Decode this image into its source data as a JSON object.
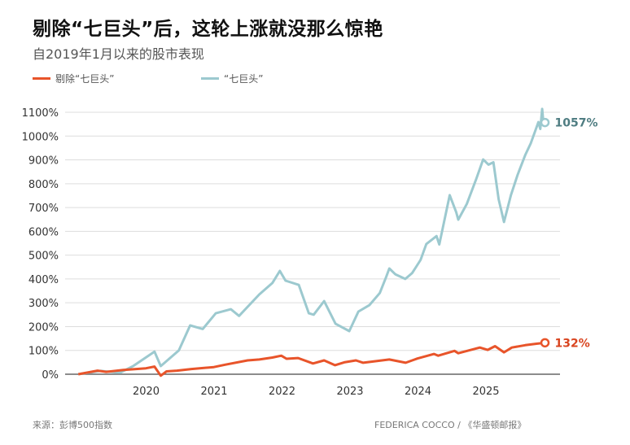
{
  "title": "剔除“七巨头”后，这轮上涨就没那么惊艳",
  "subtitle": "自2019年1月以来的股市表现",
  "source": "来源：彭博500指数",
  "credit": "FEDERICA COCCO / 《华盛顿邮报》",
  "chart_data": {
    "type": "line",
    "xlabel": "",
    "ylabel": "",
    "ylim": [
      0,
      1100
    ],
    "yticks": [
      "0%",
      "100%",
      "200%",
      "300%",
      "400%",
      "500%",
      "600%",
      "700%",
      "800%",
      "900%",
      "1000%",
      "1100%"
    ],
    "xticks": [
      "2020",
      "2021",
      "2022",
      "2023",
      "2024",
      "2025"
    ],
    "grid": true,
    "legend": "top-left",
    "series": [
      {
        "name": "剔除“七巨头”",
        "color": "#e8542a",
        "end_label": "132%",
        "points": [
          [
            "2019-01-02",
            0
          ],
          [
            "2019-04-15",
            15
          ],
          [
            "2019-06-01",
            10
          ],
          [
            "2019-09-01",
            18
          ],
          [
            "2019-12-31",
            25
          ],
          [
            "2020-02-15",
            32
          ],
          [
            "2020-03-20",
            -6
          ],
          [
            "2020-04-20",
            12
          ],
          [
            "2020-06-15",
            15
          ],
          [
            "2020-09-01",
            22
          ],
          [
            "2020-12-31",
            30
          ],
          [
            "2021-03-01",
            40
          ],
          [
            "2021-06-30",
            58
          ],
          [
            "2021-09-01",
            62
          ],
          [
            "2021-11-10",
            70
          ],
          [
            "2021-12-28",
            78
          ],
          [
            "2022-01-25",
            65
          ],
          [
            "2022-03-28",
            68
          ],
          [
            "2022-06-16",
            45
          ],
          [
            "2022-08-15",
            58
          ],
          [
            "2022-10-12",
            38
          ],
          [
            "2022-12-01",
            50
          ],
          [
            "2023-02-02",
            58
          ],
          [
            "2023-03-13",
            48
          ],
          [
            "2023-07-31",
            62
          ],
          [
            "2023-10-27",
            48
          ],
          [
            "2023-12-29",
            66
          ],
          [
            "2024-03-28",
            85
          ],
          [
            "2024-04-19",
            78
          ],
          [
            "2024-07-16",
            98
          ],
          [
            "2024-08-05",
            88
          ],
          [
            "2024-11-29",
            112
          ],
          [
            "2025-01-10",
            102
          ],
          [
            "2025-02-19",
            118
          ],
          [
            "2025-04-08",
            92
          ],
          [
            "2025-05-20",
            112
          ],
          [
            "2025-07-31",
            122
          ],
          [
            "2025-09-30",
            128
          ],
          [
            "2025-11-14",
            132
          ]
        ]
      },
      {
        "name": "“七巨头”",
        "color": "#9cc9cf",
        "end_label": "1057%",
        "points": [
          [
            "2019-01-02",
            0
          ],
          [
            "2019-05-01",
            14
          ],
          [
            "2019-08-15",
            7
          ],
          [
            "2019-10-25",
            35
          ],
          [
            "2020-02-15",
            95
          ],
          [
            "2020-03-20",
            34
          ],
          [
            "2020-06-25",
            100
          ],
          [
            "2020-08-25",
            205
          ],
          [
            "2020-11-01",
            190
          ],
          [
            "2021-01-10",
            256
          ],
          [
            "2021-04-01",
            273
          ],
          [
            "2021-05-15",
            245
          ],
          [
            "2021-09-01",
            335
          ],
          [
            "2021-11-10",
            383
          ],
          [
            "2021-12-20",
            434
          ],
          [
            "2022-01-20",
            393
          ],
          [
            "2022-04-01",
            375
          ],
          [
            "2022-05-25",
            256
          ],
          [
            "2022-06-20",
            250
          ],
          [
            "2022-08-15",
            307
          ],
          [
            "2022-10-15",
            212
          ],
          [
            "2022-12-28",
            181
          ],
          [
            "2023-02-15",
            263
          ],
          [
            "2023-04-15",
            290
          ],
          [
            "2023-06-10",
            341
          ],
          [
            "2023-07-15",
            410
          ],
          [
            "2023-07-31",
            444
          ],
          [
            "2023-09-01",
            420
          ],
          [
            "2023-10-25",
            400
          ],
          [
            "2023-12-01",
            425
          ],
          [
            "2024-01-15",
            480
          ],
          [
            "2024-02-15",
            547
          ],
          [
            "2024-04-10",
            580
          ],
          [
            "2024-04-25",
            545
          ],
          [
            "2024-06-20",
            752
          ],
          [
            "2024-07-25",
            680
          ],
          [
            "2024-08-05",
            649
          ],
          [
            "2024-09-20",
            715
          ],
          [
            "2024-11-10",
            820
          ],
          [
            "2024-12-17",
            902
          ],
          [
            "2025-01-15",
            880
          ],
          [
            "2025-02-10",
            890
          ],
          [
            "2025-03-10",
            735
          ],
          [
            "2025-04-08",
            639
          ],
          [
            "2025-05-15",
            752
          ],
          [
            "2025-06-20",
            837
          ],
          [
            "2025-08-01",
            922
          ],
          [
            "2025-08-30",
            970
          ],
          [
            "2025-10-10",
            1059
          ],
          [
            "2025-10-20",
            1030
          ],
          [
            "2025-10-30",
            1114
          ],
          [
            "2025-11-05",
            1060
          ],
          [
            "2025-11-14",
            1057
          ]
        ]
      }
    ]
  }
}
